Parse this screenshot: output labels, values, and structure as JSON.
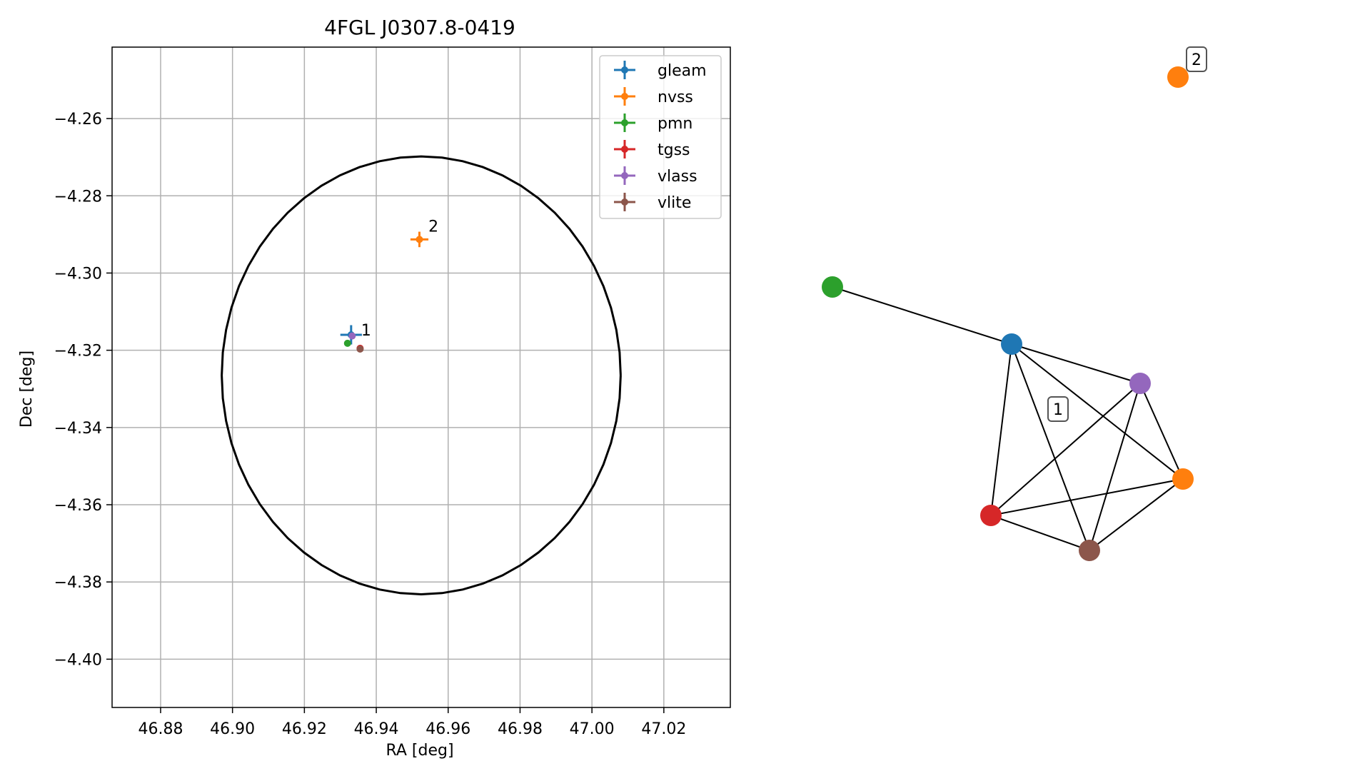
{
  "chart_data": [
    {
      "type": "scatter",
      "title": "4FGL J0307.8-0419",
      "xlabel": "RA [deg]",
      "ylabel": "Dec [deg]",
      "xlim": [
        46.8665,
        47.0385
      ],
      "ylim": [
        -4.4125,
        -4.2415
      ],
      "grid": true,
      "legend_position": "top-right",
      "xticks": [
        46.88,
        46.9,
        46.92,
        46.94,
        46.96,
        46.98,
        47.0,
        47.02
      ],
      "xtick_labels": [
        "46.88",
        "46.90",
        "46.92",
        "46.94",
        "46.96",
        "46.98",
        "47.00",
        "47.02"
      ],
      "yticks": [
        -4.26,
        -4.28,
        -4.3,
        -4.32,
        -4.34,
        -4.36,
        -4.38,
        -4.4
      ],
      "ytick_labels": [
        "−4.26",
        "−4.28",
        "−4.30",
        "−4.32",
        "−4.34",
        "−4.36",
        "−4.38",
        "−4.40"
      ],
      "ellipse": {
        "center_ra": 46.9525,
        "center_dec": -4.3265,
        "semi_ra": 0.0555,
        "semi_dec": 0.0567,
        "color": "#000000"
      },
      "series": [
        {
          "name": "gleam",
          "color": "#1f77b4",
          "x": 46.933,
          "y": -4.316,
          "xerr": 0.003,
          "yerr": 0.0025
        },
        {
          "name": "nvss",
          "color": "#ff7f0e",
          "x": 46.952,
          "y": -4.2913,
          "xerr": 0.0025,
          "yerr": 0.002
        },
        {
          "name": "pmn",
          "color": "#2ca02c",
          "x": 46.932,
          "y": -4.3182,
          "xerr": 0,
          "yerr": 0
        },
        {
          "name": "tgss",
          "color": "#d62728",
          "x": 46.9355,
          "y": -4.3195,
          "xerr": 0,
          "yerr": 0
        },
        {
          "name": "vlass",
          "color": "#9467bd",
          "x": 46.9333,
          "y": -4.3163,
          "xerr": 0,
          "yerr": 0
        },
        {
          "name": "vlite",
          "color": "#8c564b",
          "x": 46.9355,
          "y": -4.3197,
          "xerr": 0,
          "yerr": 0
        }
      ],
      "annotations": [
        {
          "text": "1",
          "x": 46.9358,
          "y": -4.3162
        },
        {
          "text": "2",
          "x": 46.9545,
          "y": -4.2893
        }
      ]
    },
    {
      "type": "network",
      "nodes": [
        {
          "id": "pmn",
          "color": "#2ca02c"
        },
        {
          "id": "gleam",
          "color": "#1f77b4"
        },
        {
          "id": "vlass",
          "color": "#9467bd"
        },
        {
          "id": "nvss_1",
          "color": "#ff7f0e"
        },
        {
          "id": "tgss",
          "color": "#d62728"
        },
        {
          "id": "vlite",
          "color": "#8c564b"
        },
        {
          "id": "nvss_2",
          "color": "#ff7f0e"
        }
      ],
      "edges": [
        [
          "pmn",
          "gleam"
        ],
        [
          "gleam",
          "vlass"
        ],
        [
          "gleam",
          "nvss_1"
        ],
        [
          "gleam",
          "tgss"
        ],
        [
          "gleam",
          "vlite"
        ],
        [
          "vlass",
          "nvss_1"
        ],
        [
          "vlass",
          "tgss"
        ],
        [
          "vlass",
          "vlite"
        ],
        [
          "nvss_1",
          "tgss"
        ],
        [
          "nvss_1",
          "vlite"
        ],
        [
          "tgss",
          "vlite"
        ]
      ],
      "group_labels": [
        "1",
        "2"
      ]
    }
  ]
}
